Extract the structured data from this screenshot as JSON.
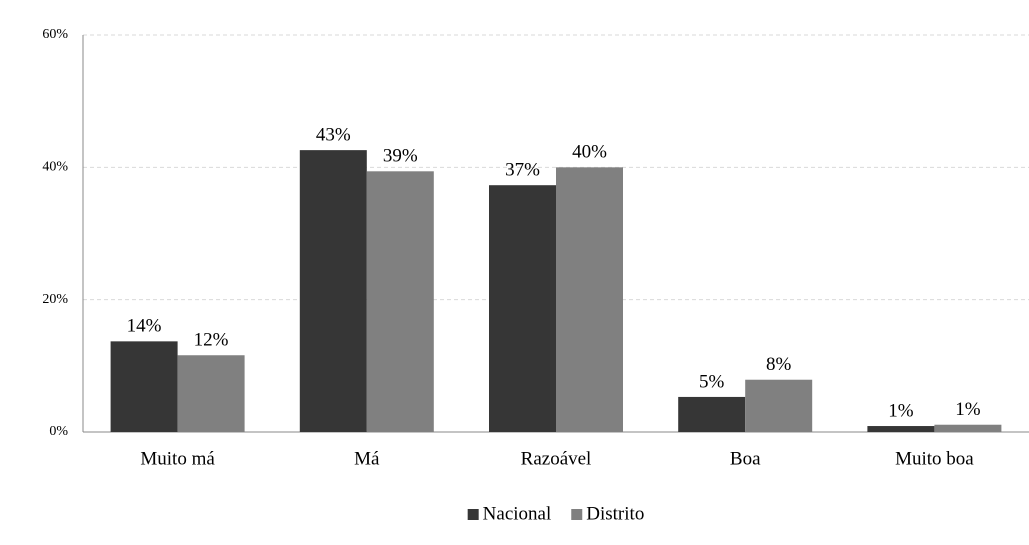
{
  "chart_data": {
    "type": "bar",
    "categories": [
      "Muito má",
      "Má",
      "Razoável",
      "Boa",
      "Muito boa"
    ],
    "series": [
      {
        "name": "Nacional",
        "color": "#363636",
        "values": [
          13.7,
          42.6,
          37.3,
          5.3,
          0.9
        ],
        "value_labels": [
          "14%",
          "43%",
          "37%",
          "5%",
          "1%"
        ]
      },
      {
        "name": "Distrito",
        "color": "#808080",
        "values": [
          11.6,
          39.4,
          40.0,
          7.9,
          1.1
        ],
        "value_labels": [
          "12%",
          "39%",
          "40%",
          "8%",
          "1%"
        ]
      }
    ],
    "ylim": [
      0,
      60
    ],
    "yticks": [
      {
        "value": 0,
        "label": "0%"
      },
      {
        "value": 20,
        "label": "20%"
      },
      {
        "value": 40,
        "label": "40%"
      },
      {
        "value": 60,
        "label": "60%"
      }
    ],
    "grid": true,
    "legend": "bottom"
  }
}
